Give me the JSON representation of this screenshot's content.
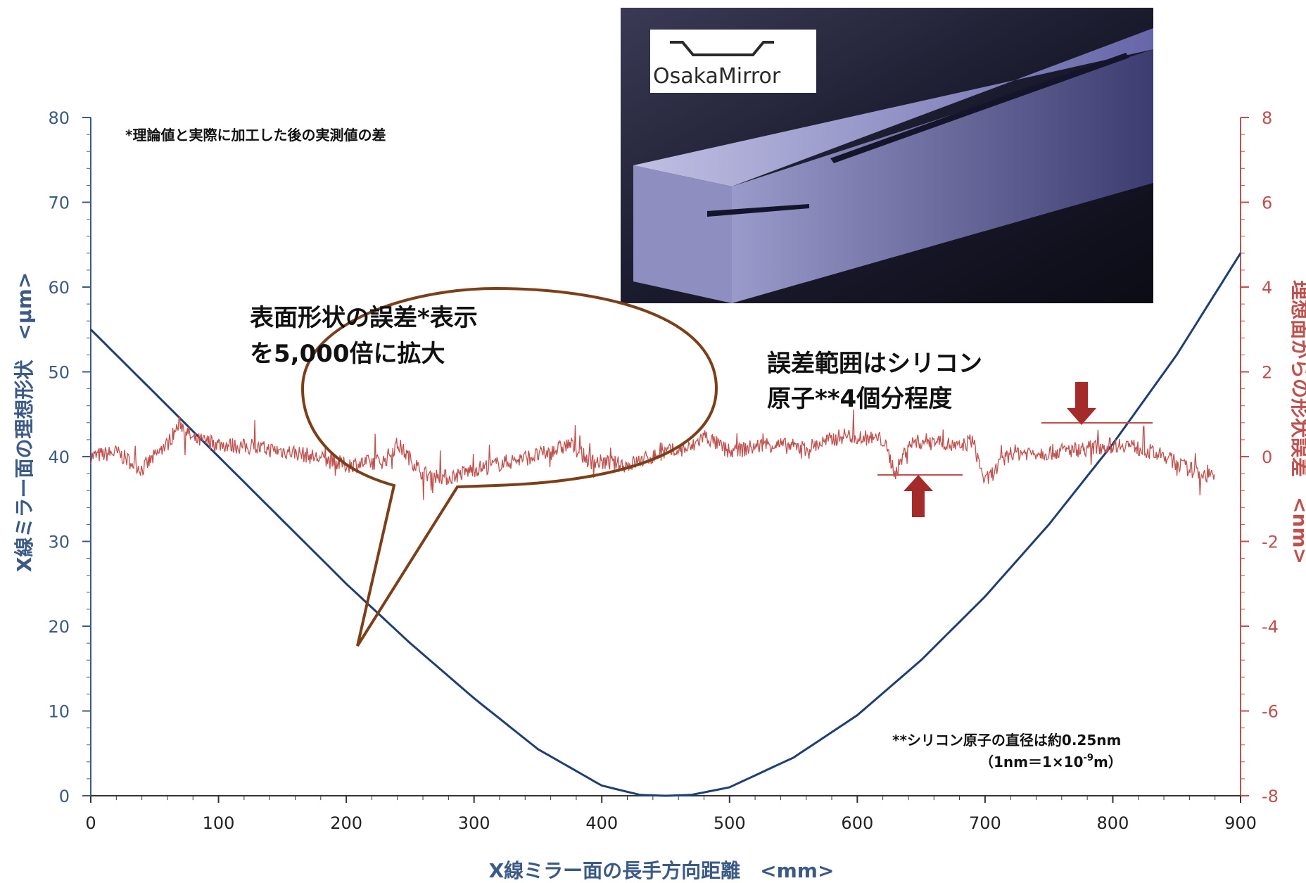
{
  "chart_data": {
    "type": "line",
    "xlabel": "X線ミラー面の長手方向距離　<mm>",
    "ylabel_left": "X線ミラー面の理想形状　<μm>",
    "ylabel_right": "理想面からの形状誤差　<nm>",
    "xlim": [
      0,
      900
    ],
    "ylim_left": [
      0,
      80
    ],
    "ylim_right": [
      -8,
      8
    ],
    "x_ticks": [
      "0",
      "100",
      "200",
      "300",
      "400",
      "500",
      "600",
      "700",
      "800",
      "900"
    ],
    "y_ticks_left": [
      "0",
      "10",
      "20",
      "30",
      "40",
      "50",
      "60",
      "70",
      "80"
    ],
    "y_ticks_right": [
      "-8",
      "-6",
      "-4",
      "-2",
      "0",
      "2",
      "4",
      "6",
      "8"
    ],
    "grid": false,
    "series": [
      {
        "axis": "left",
        "color": "#1f3f73",
        "x": [
          0,
          50,
          100,
          150,
          200,
          250,
          300,
          350,
          400,
          430,
          450,
          470,
          500,
          550,
          600,
          650,
          700,
          750,
          800,
          850,
          900
        ],
        "y": [
          55,
          47.5,
          40,
          32.5,
          25,
          18,
          11.5,
          5.5,
          1.2,
          0.1,
          0,
          0.1,
          1,
          4.5,
          9.5,
          16,
          23.5,
          32,
          41.5,
          52,
          64
        ]
      },
      {
        "axis": "right",
        "color": "#c0504d",
        "x": [
          0,
          20,
          40,
          60,
          70,
          80,
          100,
          130,
          160,
          200,
          230,
          240,
          260,
          280,
          300,
          330,
          360,
          375,
          390,
          420,
          450,
          470,
          480,
          500,
          530,
          560,
          590,
          620,
          630,
          640,
          660,
          680,
          690,
          700,
          720,
          750,
          780,
          810,
          840,
          860,
          880
        ],
        "y": [
          0,
          0.1,
          -0.3,
          0.3,
          0.8,
          0.4,
          0.3,
          0.2,
          0.1,
          -0.2,
          -0.1,
          0.3,
          -0.4,
          -0.5,
          -0.3,
          -0.1,
          0.1,
          0.3,
          -0.1,
          -0.2,
          0.1,
          0.2,
          0.5,
          0.1,
          0.3,
          0.2,
          0.5,
          0.4,
          -0.4,
          0.3,
          0.4,
          0.2,
          0.4,
          -0.6,
          0.1,
          0.1,
          0.2,
          0.3,
          0,
          -0.3,
          -0.5
        ]
      }
    ],
    "annotations": {
      "note_top": "*理論値と実際に加工した後の実測値の差",
      "callout_line1": "表面形状の誤差*表示",
      "callout_line2": "を5,000倍に拡大",
      "range_line1": "誤差範囲はシリコン",
      "range_line2": "原子**4個分程度",
      "footnote_line1": "**シリコン原子の直径は約0.25nm",
      "footnote_line2": "（1nm＝1×10",
      "footnote_sup": "-9",
      "footnote_line2_end": "m）",
      "logo": "OsakaMirror"
    }
  }
}
